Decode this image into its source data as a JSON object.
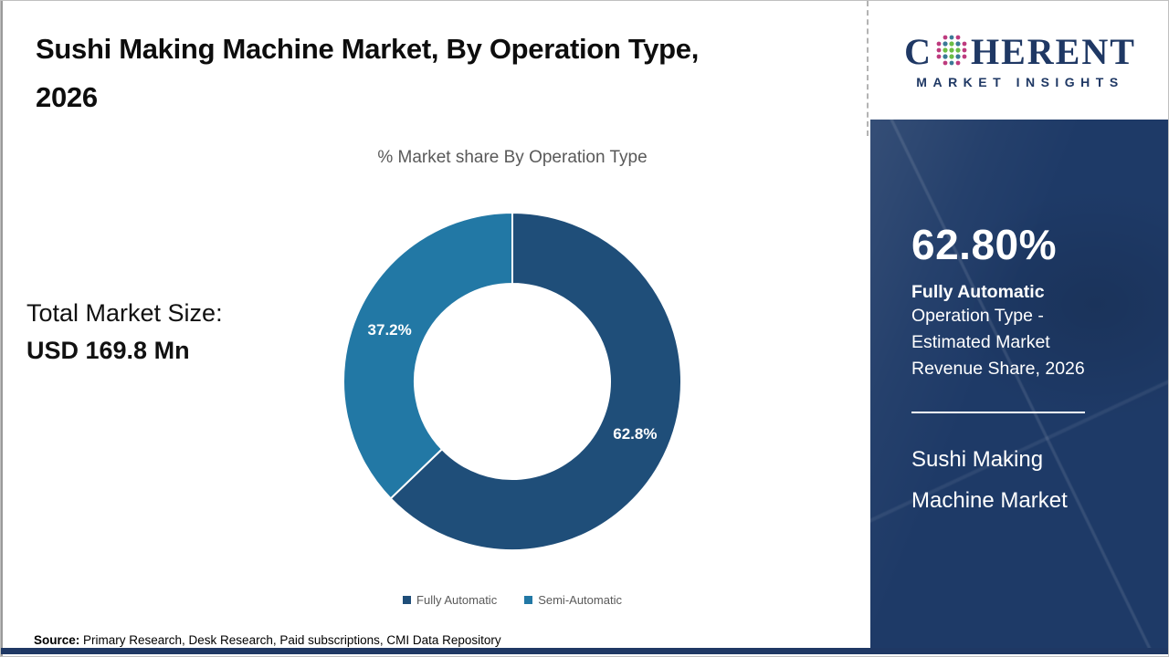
{
  "header": {
    "title": "Sushi Making Machine Market, By Operation Type, 2026",
    "logo": {
      "brand_c": "C",
      "brand_rest": "HERENT",
      "tagline": "MARKET INSIGHTS",
      "color": "#1F3864",
      "icon": "globe-dots-icon"
    }
  },
  "left_panel": {
    "total_label": "Total Market Size:",
    "total_value": "USD 169.8 Mn"
  },
  "chart_data": {
    "type": "pie",
    "donut": true,
    "title": "% Market share By Operation Type",
    "categories": [
      "Fully Automatic",
      "Semi-Automatic"
    ],
    "values": [
      62.8,
      37.2
    ],
    "labels": [
      "62.8%",
      "37.2%"
    ],
    "colors": [
      "#1F4E79",
      "#2278A5"
    ],
    "start_angle_deg": 0,
    "direction": "clockwise",
    "legend_position": "bottom",
    "inner_radius_ratio": 0.58
  },
  "side_panel": {
    "stat_value": "62.80%",
    "stat_bold": "Fully Automatic",
    "stat_lines": [
      "Operation Type -",
      "Estimated Market",
      "Revenue Share, 2026"
    ],
    "market_name": "Sushi Making Machine Market",
    "panel_color": "#1E3A67"
  },
  "footer": {
    "source_label": "Source:",
    "source_text": " Primary Research, Desk Research, Paid subscriptions, CMI Data Repository",
    "bar_color": "#1F3864"
  }
}
